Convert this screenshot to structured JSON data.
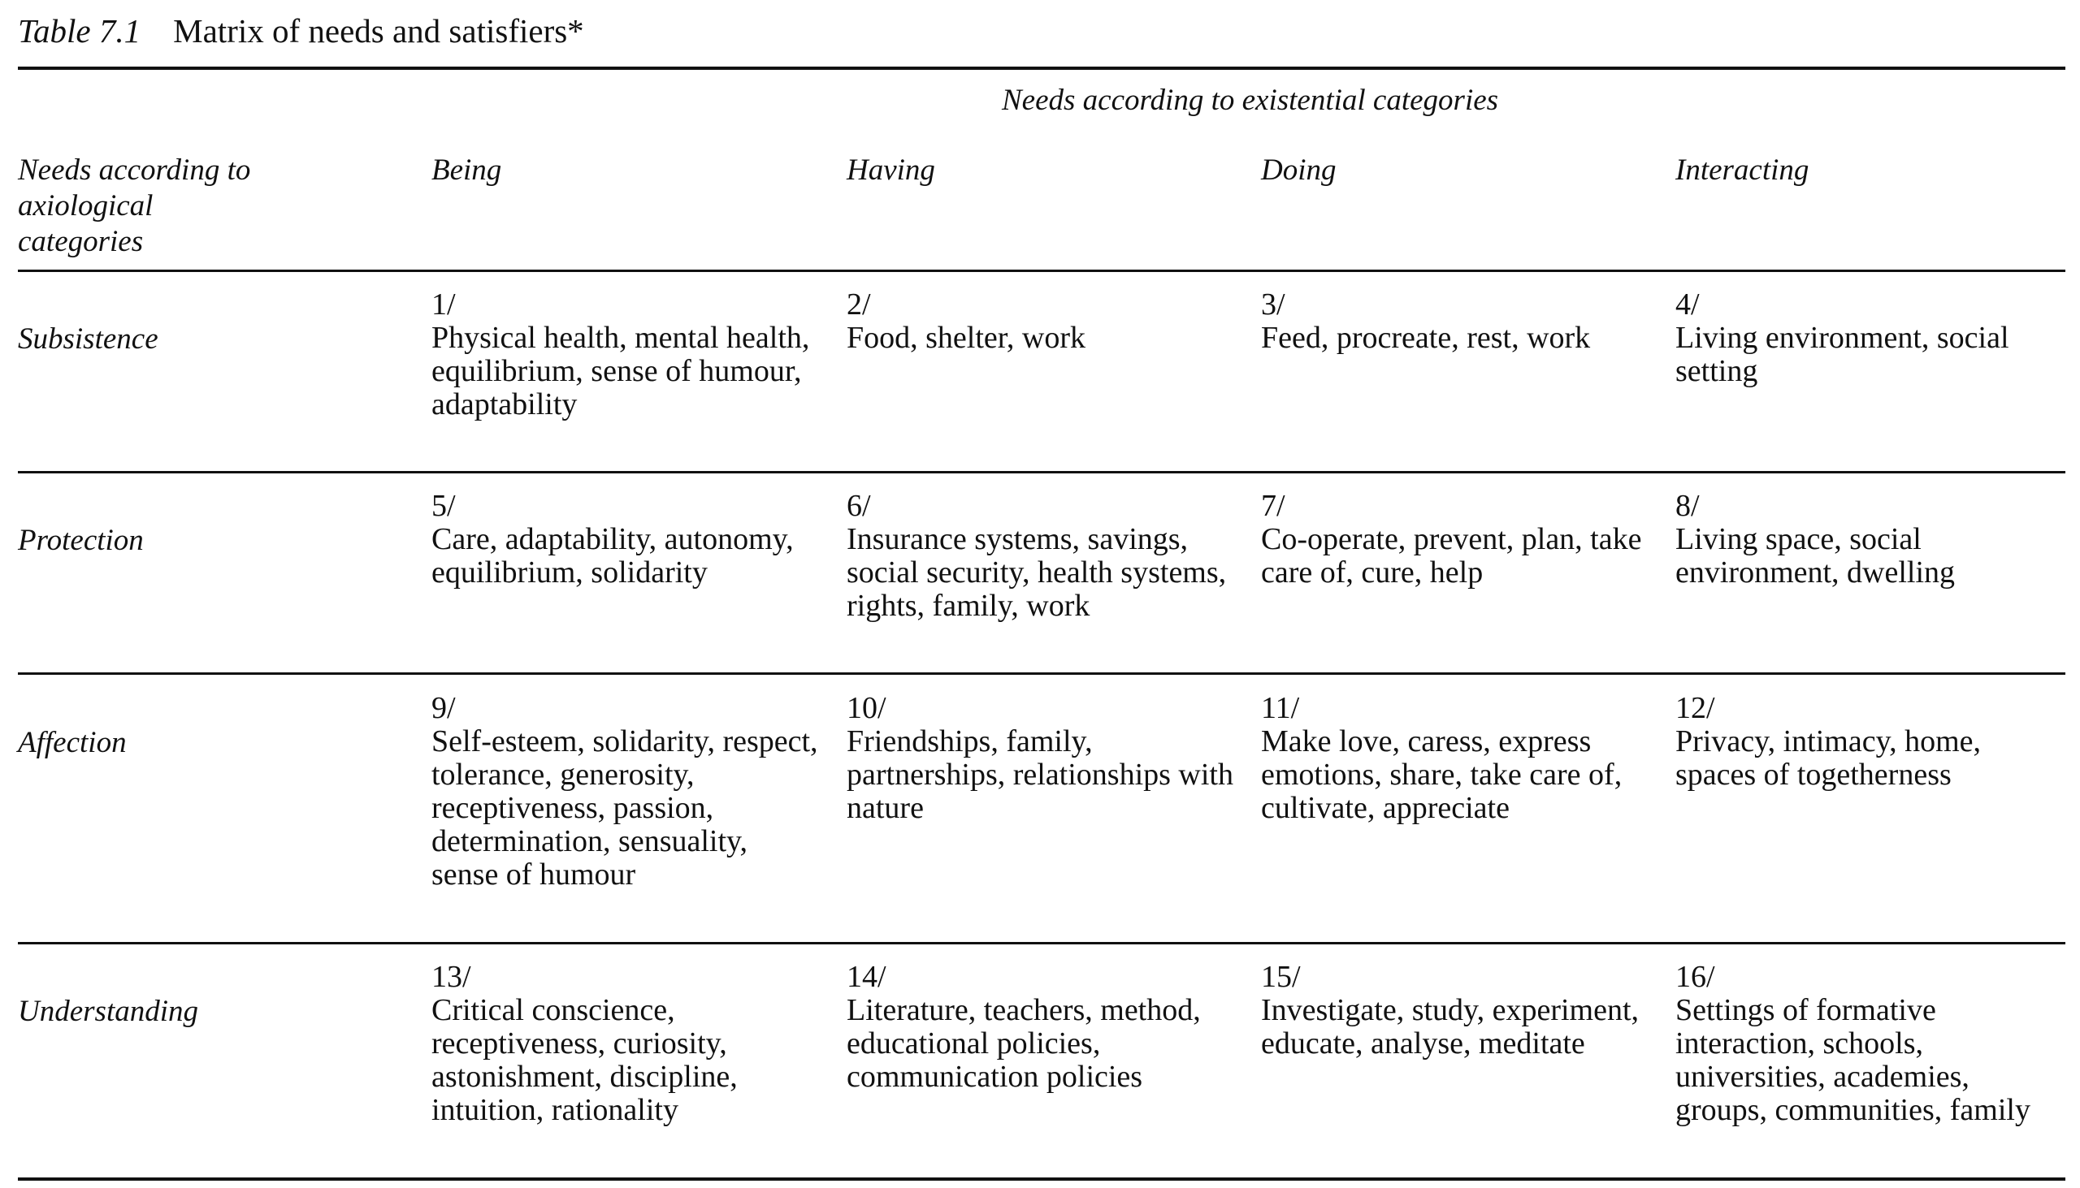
{
  "table": {
    "label": "Table 7.1",
    "title": "Matrix of needs and satisfiers*",
    "existential_header": "Needs according to existential categories",
    "axiological_header": "Needs according to axiological categories",
    "columns": [
      "Being",
      "Having",
      "Doing",
      "Interacting"
    ],
    "rows": [
      {
        "label": "Subsistence",
        "cells": [
          {
            "num": "1/",
            "text": "Physical health, mental health, equilibrium, sense of humour, adaptability"
          },
          {
            "num": "2/",
            "text": "Food, shelter, work"
          },
          {
            "num": "3/",
            "text": "Feed, procreate, rest, work"
          },
          {
            "num": "4/",
            "text": "Living environment, social setting"
          }
        ]
      },
      {
        "label": "Protection",
        "cells": [
          {
            "num": "5/",
            "text": "Care, adaptability, autonomy, equilibrium, solidarity"
          },
          {
            "num": "6/",
            "text": "Insurance systems, savings, social security, health systems, rights, family, work"
          },
          {
            "num": "7/",
            "text": "Co-operate, prevent, plan, take care of, cure, help"
          },
          {
            "num": "8/",
            "text": "Living space, social environment, dwelling"
          }
        ]
      },
      {
        "label": "Affection",
        "cells": [
          {
            "num": "9/",
            "text": "Self-esteem, solidarity, respect, tolerance, generosity, receptiveness, passion, determination, sensuality, sense of humour"
          },
          {
            "num": "10/",
            "text": "Friendships, family, partnerships, relationships with nature"
          },
          {
            "num": "11/",
            "text": "Make love, caress, express emotions, share, take care of, cultivate, appreciate"
          },
          {
            "num": "12/",
            "text": "Privacy, intimacy, home, spaces of togetherness"
          }
        ]
      },
      {
        "label": "Understanding",
        "cells": [
          {
            "num": "13/",
            "text": "Critical conscience, receptiveness, curiosity, astonishment, discipline, intuition, rationality"
          },
          {
            "num": "14/",
            "text": "Literature, teachers, method, educational policies, communication policies"
          },
          {
            "num": "15/",
            "text": "Investigate, study, experiment, educate, analyse, meditate"
          },
          {
            "num": "16/",
            "text": "Settings of formative interaction, schools, universities, academies, groups, communities, family"
          }
        ]
      }
    ]
  }
}
